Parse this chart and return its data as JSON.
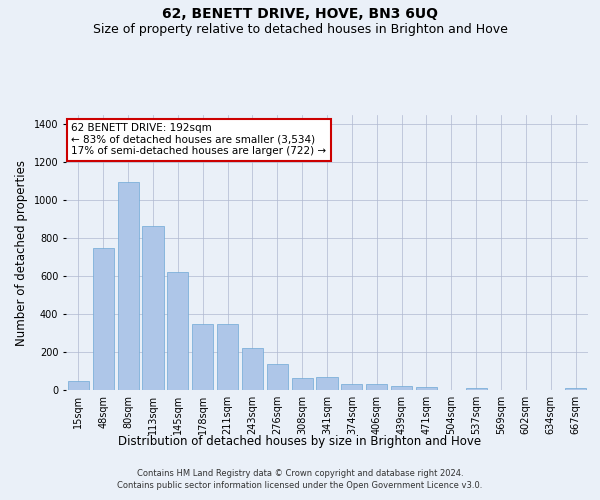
{
  "title": "62, BENETT DRIVE, HOVE, BN3 6UQ",
  "subtitle": "Size of property relative to detached houses in Brighton and Hove",
  "xlabel": "Distribution of detached houses by size in Brighton and Hove",
  "ylabel": "Number of detached properties",
  "footer_line1": "Contains HM Land Registry data © Crown copyright and database right 2024.",
  "footer_line2": "Contains public sector information licensed under the Open Government Licence v3.0.",
  "categories": [
    "15sqm",
    "48sqm",
    "80sqm",
    "113sqm",
    "145sqm",
    "178sqm",
    "211sqm",
    "243sqm",
    "276sqm",
    "308sqm",
    "341sqm",
    "374sqm",
    "406sqm",
    "439sqm",
    "471sqm",
    "504sqm",
    "537sqm",
    "569sqm",
    "602sqm",
    "634sqm",
    "667sqm"
  ],
  "values": [
    48,
    750,
    1095,
    865,
    620,
    350,
    350,
    220,
    135,
    65,
    70,
    30,
    30,
    22,
    15,
    0,
    12,
    0,
    0,
    0,
    12
  ],
  "bar_color": "#aec6e8",
  "bar_edge_color": "#6fa8d6",
  "annotation_text": "62 BENETT DRIVE: 192sqm\n← 83% of detached houses are smaller (3,534)\n17% of semi-detached houses are larger (722) →",
  "annotation_box_color": "#ffffff",
  "annotation_box_edge_color": "#cc0000",
  "bg_color": "#eaf0f8",
  "ylim": [
    0,
    1450
  ],
  "yticks": [
    0,
    200,
    400,
    600,
    800,
    1000,
    1200,
    1400
  ],
  "title_fontsize": 10,
  "subtitle_fontsize": 9,
  "ylabel_fontsize": 8.5,
  "xlabel_fontsize": 8.5,
  "annotation_fontsize": 7.5,
  "tick_fontsize": 7,
  "footer_fontsize": 6
}
